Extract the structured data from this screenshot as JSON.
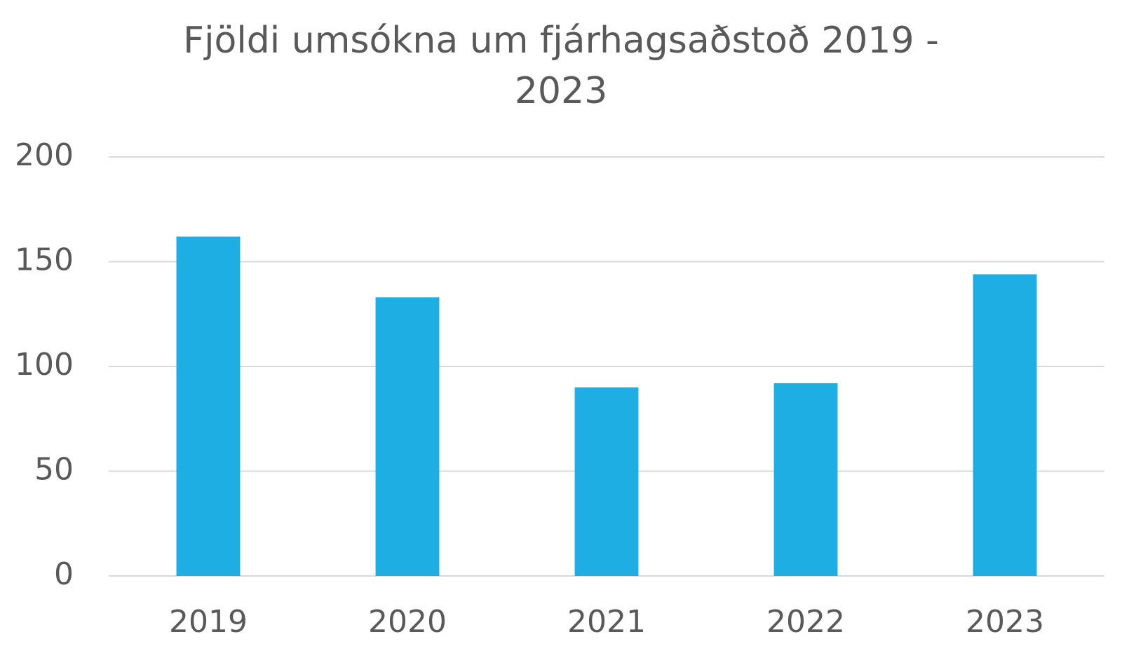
{
  "chart_data": {
    "type": "bar",
    "title": "Fjöldi umsókna um fjárhagsaðstoð 2019 - 2023",
    "categories": [
      "2019",
      "2020",
      "2021",
      "2022",
      "2023"
    ],
    "values": [
      162,
      133,
      90,
      92,
      144
    ],
    "color": "#1eaee4",
    "ylim": [
      0,
      200
    ],
    "yticks": [
      0,
      50,
      100,
      150,
      200
    ],
    "grid": true
  }
}
